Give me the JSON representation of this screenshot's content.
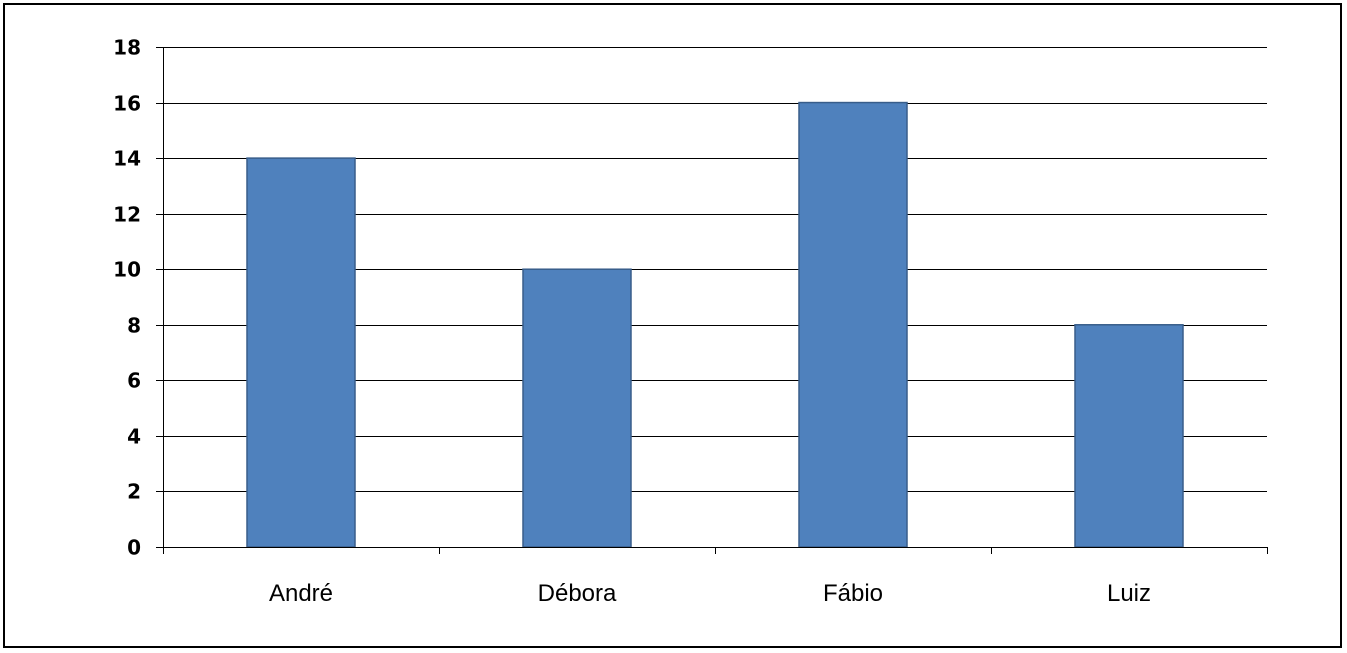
{
  "chart_data": {
    "type": "bar",
    "title": "",
    "xlabel": "",
    "ylabel": "",
    "categories": [
      "André",
      "Débora",
      "Fábio",
      "Luiz"
    ],
    "values": [
      14,
      10,
      16,
      8
    ],
    "ylim": [
      0,
      18
    ],
    "yticks": [
      "0",
      "2",
      "4",
      "6",
      "8",
      "10",
      "12",
      "14",
      "16",
      "18"
    ],
    "grid": true,
    "legend": "none",
    "bar_color": "#4F81BD",
    "bar_border_color": "#385D8A"
  }
}
